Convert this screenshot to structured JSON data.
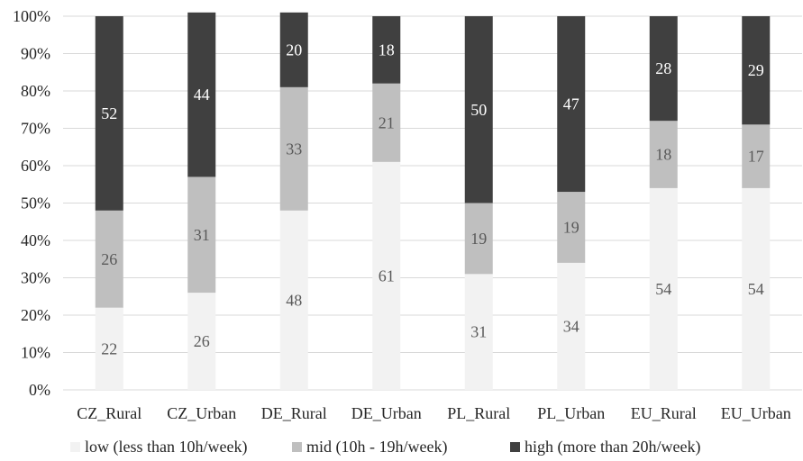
{
  "chart_data": {
    "type": "bar",
    "stacked": true,
    "percent_stacked": true,
    "categories": [
      "CZ_Rural",
      "CZ_Urban",
      "DE_Rural",
      "DE_Urban",
      "PL_Rural",
      "PL_Urban",
      "EU_Rural",
      "EU_Urban"
    ],
    "series": [
      {
        "name": "low (less than 10h/week)",
        "color": "#f2f2f2",
        "label_color": "#595959",
        "values": [
          22,
          26,
          48,
          61,
          31,
          34,
          54,
          54
        ]
      },
      {
        "name": "mid (10h - 19h/week)",
        "color": "#bfbfbf",
        "label_color": "#595959",
        "values": [
          26,
          31,
          33,
          21,
          19,
          19,
          18,
          17
        ]
      },
      {
        "name": "high (more than 20h/week)",
        "color": "#404040",
        "label_color": "#ffffff",
        "values": [
          52,
          44,
          20,
          18,
          50,
          47,
          28,
          29
        ]
      }
    ],
    "y_ticks": [
      "0%",
      "10%",
      "20%",
      "30%",
      "40%",
      "50%",
      "60%",
      "70%",
      "80%",
      "90%",
      "100%"
    ],
    "ylim": [
      0,
      100
    ],
    "grid": true,
    "gridline_color": "#d9d9d9",
    "legend_position": "bottom"
  }
}
